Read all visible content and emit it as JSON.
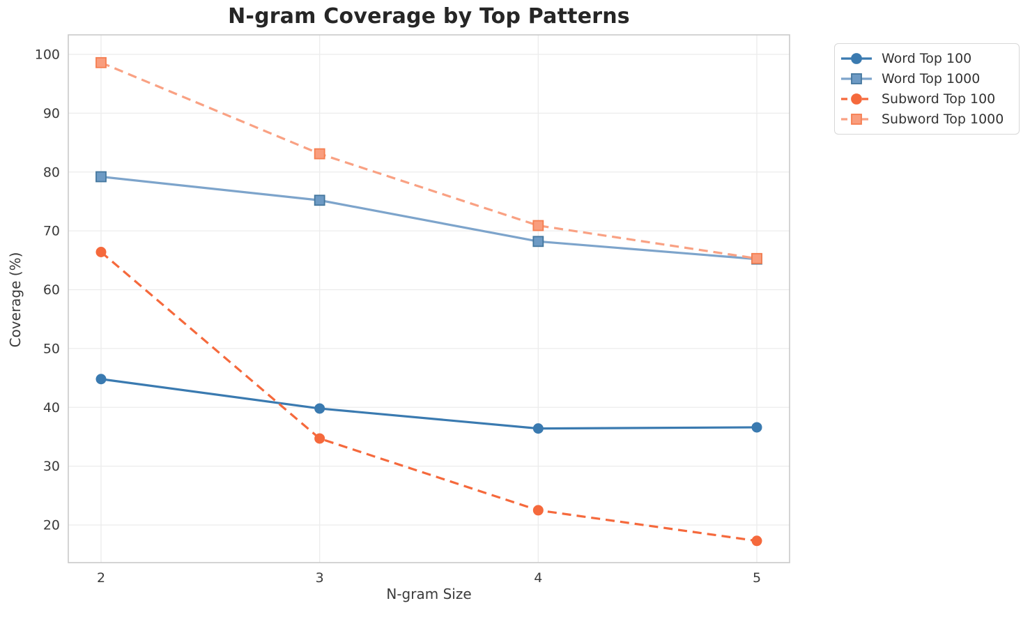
{
  "chart_data": {
    "type": "line",
    "title": "N-gram Coverage by Top Patterns",
    "xlabel": "N-gram Size",
    "ylabel": "Coverage (%)",
    "x": [
      2,
      3,
      4,
      5
    ],
    "xtick_labels": [
      "2",
      "3",
      "4",
      "5"
    ],
    "yticks": [
      20,
      30,
      40,
      50,
      60,
      70,
      80,
      90,
      100
    ],
    "xlim": [
      1.83,
      5.15
    ],
    "ylim": [
      13.5,
      103.3
    ],
    "grid": true,
    "legend_position": "outside-upper-right",
    "series": [
      {
        "name": "Word Top 100",
        "values": [
          44.8,
          39.8,
          36.4,
          36.6
        ],
        "line_style": "solid",
        "marker": "circle",
        "line_color": "#3a7ab0",
        "marker_fill": "#3a7ab0",
        "marker_edge": "#3a7ab0"
      },
      {
        "name": "Word Top 1000",
        "values": [
          79.2,
          75.2,
          68.2,
          65.2
        ],
        "line_style": "solid",
        "marker": "square",
        "line_color": "#7da4cb",
        "marker_fill": "#6d9ac4",
        "marker_edge": "#44779e"
      },
      {
        "name": "Subword Top 100",
        "values": [
          66.4,
          34.7,
          22.5,
          17.3
        ],
        "line_style": "dashed",
        "marker": "circle",
        "line_color": "#f5693c",
        "marker_fill": "#f5693c",
        "marker_edge": "#f5693c"
      },
      {
        "name": "Subword Top 1000",
        "values": [
          98.6,
          83.1,
          70.9,
          65.3
        ],
        "line_style": "dashed",
        "marker": "square",
        "line_color": "#f9a183",
        "marker_fill": "#f99d7d",
        "marker_edge": "#f57e50"
      }
    ],
    "style": {
      "grid_color": "#ececec",
      "spine_color": "#c9c9c9",
      "tick_label_color": "#3a3a3a",
      "title_color": "#262626"
    }
  }
}
